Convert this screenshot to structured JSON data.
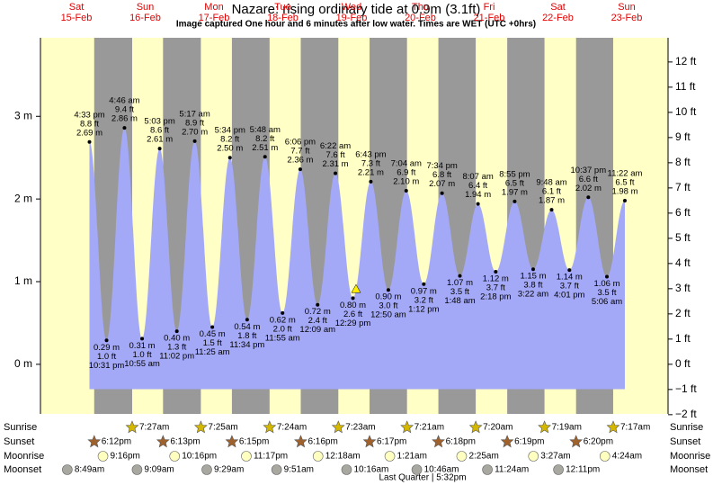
{
  "chart_data": {
    "type": "tide",
    "title": "Nazare: rising  ordinary tide at 0.9m (3.1ft)",
    "subtitle": "Image captured One hour and 6 minutes after low water. Times are WET (UTC +0hrs)",
    "days": [
      {
        "day": "Sat",
        "date": "15-Feb"
      },
      {
        "day": "Sun",
        "date": "16-Feb"
      },
      {
        "day": "Mon",
        "date": "17-Feb"
      },
      {
        "day": "Tue",
        "date": "18-Feb"
      },
      {
        "day": "Wed",
        "date": "19-Feb"
      },
      {
        "day": "Thu",
        "date": "20-Feb"
      },
      {
        "day": "Fri",
        "date": "21-Feb"
      },
      {
        "day": "Sat",
        "date": "22-Feb"
      },
      {
        "day": "Sun",
        "date": "23-Feb"
      }
    ],
    "tides": {
      "times": [
        "4:33 pm",
        "10:31 pm",
        "4:46 am",
        "10:55 am",
        "5:03 pm",
        "11:02 pm",
        "5:17 am",
        "11:25 am",
        "5:34 pm",
        "11:34 pm",
        "5:48 am",
        "11:55 am",
        "6:06 pm",
        "12:09 am",
        "6:22 am",
        "12:29 pm",
        "6:43 pm",
        "12:50 am",
        "7:04 am",
        "1:12 pm",
        "7:34 pm",
        "1:48 am",
        "8:07 am",
        "2:18 pm",
        "8:55 pm",
        "3:22 am",
        "9:48 am",
        "4:01 pm",
        "10:37 pm",
        "5:06 am",
        "11:22 am"
      ],
      "values": [
        2.69,
        0.29,
        2.86,
        0.31,
        2.61,
        0.4,
        2.7,
        0.45,
        2.5,
        0.54,
        2.51,
        0.62,
        2.36,
        0.72,
        2.31,
        0.8,
        2.21,
        0.9,
        2.1,
        0.97,
        2.07,
        1.07,
        1.94,
        1.12,
        1.97,
        1.15,
        1.87,
        1.14,
        2.02,
        1.06,
        1.98
      ],
      "value_labels": [
        "2.69 m",
        "0.29 m",
        "2.86 m",
        "0.31 m",
        "2.61 m",
        "0.40 m",
        "2.70 m",
        "0.45 m",
        "2.50 m",
        "0.54 m",
        "2.51 m",
        "0.62 m",
        "2.36 m",
        "0.72 m",
        "2.31 m",
        "0.80 m",
        "2.21 m",
        "0.90 m",
        "2.10 m",
        "0.97 m",
        "2.07 m",
        "1.07 m",
        "1.94 m",
        "1.12 m",
        "1.97 m",
        "1.15 m",
        "1.87 m",
        "1.14 m",
        "2.02 m",
        "1.06 m",
        "1.98 m"
      ],
      "ft_labels": [
        "8.8 ft",
        "1.0 ft",
        "9.4 ft",
        "1.0 ft",
        "8.6 ft",
        "1.3 ft",
        "8.9 ft",
        "1.5 ft",
        "8.2 ft",
        "1.8 ft",
        "8.2 ft",
        "2.0 ft",
        "7.7 ft",
        "2.4 ft",
        "7.6 ft",
        "2.6 ft",
        "7.3 ft",
        "3.0 ft",
        "6.9 ft",
        "3.2 ft",
        "6.8 ft",
        "3.5 ft",
        "6.4 ft",
        "3.7 ft",
        "6.5 ft",
        "3.8 ft",
        "6.1 ft",
        "3.7 ft",
        "6.6 ft",
        "3.5 ft",
        "6.5 ft"
      ],
      "color": "#a3a8f7"
    },
    "now_m": 0.9,
    "ylim": [
      -0.6,
      3.95
    ],
    "yticks": [
      {
        "value": 0,
        "label": "0 m"
      },
      {
        "value": 1,
        "label": "1 m"
      },
      {
        "value": 2,
        "label": "2 m"
      },
      {
        "value": 3,
        "label": "3 m"
      }
    ],
    "y2lim": [
      -1.97,
      12.96
    ],
    "y2ticks": [
      {
        "value": -2,
        "label": "−2 ft"
      },
      {
        "value": -1,
        "label": "−1 ft"
      },
      {
        "value": 0,
        "label": "0 ft"
      },
      {
        "value": 1,
        "label": "1 ft"
      },
      {
        "value": 2,
        "label": "2 ft"
      },
      {
        "value": 3,
        "label": "3 ft"
      },
      {
        "value": 4,
        "label": "4 ft"
      },
      {
        "value": 5,
        "label": "5 ft"
      },
      {
        "value": 6,
        "label": "6 ft"
      },
      {
        "value": 7,
        "label": "7 ft"
      },
      {
        "value": 8,
        "label": "8 ft"
      },
      {
        "value": 9,
        "label": "9 ft"
      },
      {
        "value": 10,
        "label": "10 ft"
      },
      {
        "value": 11,
        "label": "11 ft"
      },
      {
        "value": 12,
        "label": "12 ft"
      }
    ],
    "rows": {
      "sunrise": "Sunrise",
      "sunset": "Sunset",
      "moonrise": "Moonrise",
      "moonset": "Moonset"
    },
    "sunrise": [
      null,
      "7:27am",
      "7:25am",
      "7:24am",
      "7:23am",
      "7:21am",
      "7:20am",
      "7:19am",
      "7:17am"
    ],
    "sunset": [
      "6:12pm",
      "6:13pm",
      "6:15pm",
      "6:16pm",
      "6:17pm",
      "6:18pm",
      "6:19pm",
      "6:20pm",
      null
    ],
    "moonrise": [
      "9:16pm",
      "10:16pm",
      "11:17pm",
      null,
      "12:18am",
      "1:21am",
      "2:25am",
      "3:27am",
      "4:24am"
    ],
    "moonset": [
      "8:49am",
      "9:09am",
      "9:29am",
      "9:51am",
      "10:16am",
      "10:46am",
      "11:24am",
      "12:11pm",
      null
    ],
    "moon_phase": "Last Quarter | 5:32pm"
  }
}
